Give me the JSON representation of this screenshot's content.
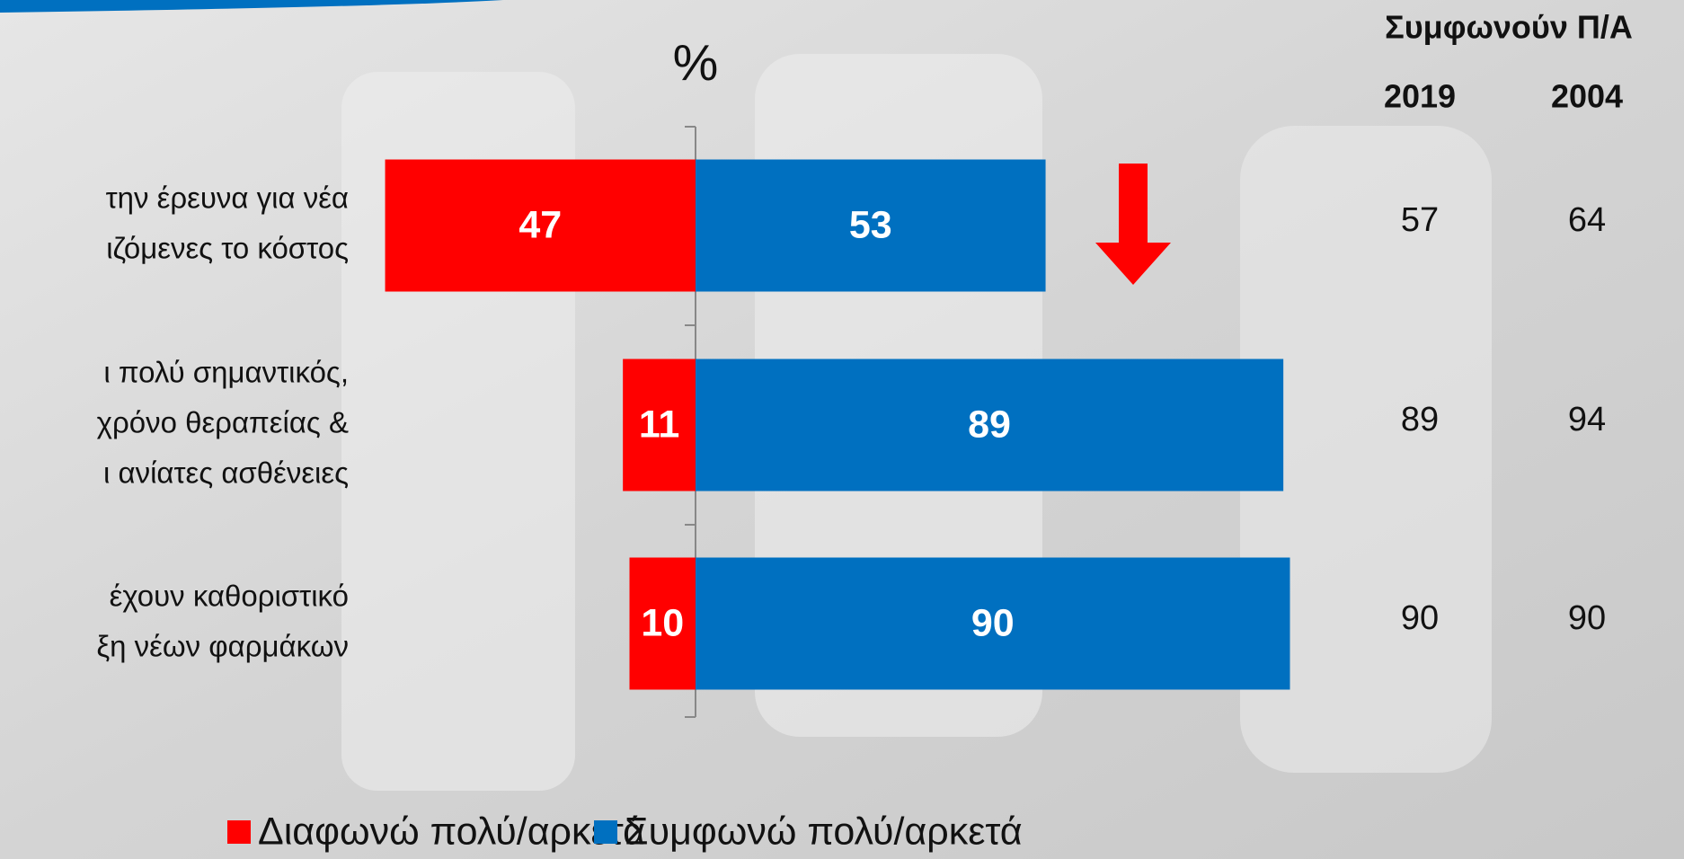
{
  "chart_data": {
    "type": "diverging_bar",
    "axis_label": "%",
    "categories": [
      [
        "την έρευνα για νέα",
        "ιζόμενες το κόστος"
      ],
      [
        "ι πολύ σημαντικός,",
        "χρόνο θεραπείας &",
        "ι ανίατες ασθένειες"
      ],
      [
        "έχουν καθοριστικό",
        "ξη νέων φαρμάκων"
      ]
    ],
    "series": [
      {
        "name": "Διαφωνώ πολύ/αρκετά",
        "color": "#ff0000",
        "direction": "left",
        "values": [
          47,
          11,
          10
        ]
      },
      {
        "name": "Συμφωνώ πολύ/αρκετά",
        "color": "#0070c0",
        "direction": "right",
        "values": [
          53,
          89,
          90
        ]
      }
    ],
    "side_table": {
      "title": "Συμφωνούν Π/Α",
      "columns": [
        "2019",
        "2004"
      ],
      "rows": [
        [
          57,
          64
        ],
        [
          89,
          94
        ],
        [
          90,
          90
        ]
      ]
    }
  }
}
